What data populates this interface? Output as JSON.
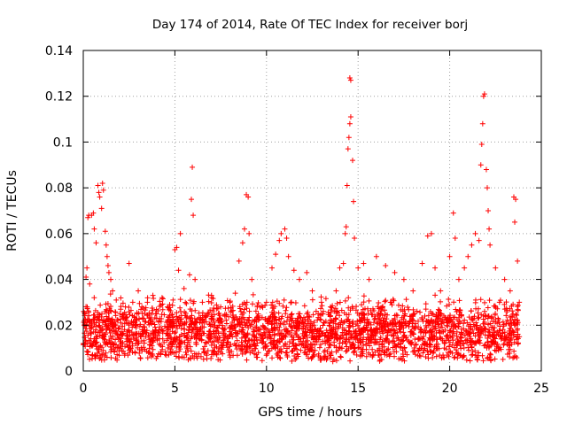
{
  "chart_data": {
    "type": "scatter",
    "title": "Day 174 of 2014, Rate Of TEC Index for receiver borj",
    "xlabel": "GPS time / hours",
    "ylabel": "ROTI / TECUs",
    "xlim": [
      0,
      25
    ],
    "ylim": [
      0,
      0.14
    ],
    "xticks": [
      0,
      5,
      10,
      15,
      20,
      25
    ],
    "xtick_labels": [
      "0",
      "5",
      "10",
      "15",
      "20",
      "25"
    ],
    "yticks": [
      0,
      0.02,
      0.04,
      0.06,
      0.08,
      0.1,
      0.12,
      0.14
    ],
    "ytick_labels": [
      "0",
      "0.02",
      "0.04",
      "0.06",
      "0.08",
      "0.1",
      "0.12",
      "0.14"
    ],
    "grid": true,
    "marker": "+",
    "series": [
      {
        "name": "ROTI",
        "color": "#ff0000",
        "points": [
          [
            0.0,
            0.012
          ],
          [
            0.1,
            0.025
          ],
          [
            0.15,
            0.041
          ],
          [
            0.2,
            0.045
          ],
          [
            0.25,
            0.067
          ],
          [
            0.3,
            0.068
          ],
          [
            0.35,
            0.038
          ],
          [
            0.45,
            0.068
          ],
          [
            0.55,
            0.069
          ],
          [
            0.6,
            0.062
          ],
          [
            0.7,
            0.056
          ],
          [
            0.8,
            0.081
          ],
          [
            0.85,
            0.078
          ],
          [
            0.9,
            0.076
          ],
          [
            1.0,
            0.071
          ],
          [
            1.05,
            0.082
          ],
          [
            1.1,
            0.079
          ],
          [
            1.2,
            0.061
          ],
          [
            1.25,
            0.055
          ],
          [
            1.3,
            0.05
          ],
          [
            1.35,
            0.046
          ],
          [
            1.4,
            0.043
          ],
          [
            1.5,
            0.04
          ],
          [
            1.6,
            0.035
          ],
          [
            1.8,
            0.031
          ],
          [
            2.0,
            0.025
          ],
          [
            2.3,
            0.028
          ],
          [
            2.5,
            0.047
          ],
          [
            2.7,
            0.03
          ],
          [
            3.0,
            0.035
          ],
          [
            3.2,
            0.028
          ],
          [
            3.5,
            0.03
          ],
          [
            3.8,
            0.033
          ],
          [
            4.0,
            0.025
          ],
          [
            4.3,
            0.032
          ],
          [
            4.6,
            0.028
          ],
          [
            4.9,
            0.031
          ],
          [
            5.0,
            0.053
          ],
          [
            5.1,
            0.054
          ],
          [
            5.3,
            0.06
          ],
          [
            5.2,
            0.044
          ],
          [
            5.5,
            0.036
          ],
          [
            5.8,
            0.042
          ],
          [
            5.9,
            0.075
          ],
          [
            5.95,
            0.089
          ],
          [
            6.0,
            0.068
          ],
          [
            6.1,
            0.04
          ],
          [
            6.5,
            0.03
          ],
          [
            7.0,
            0.033
          ],
          [
            7.5,
            0.028
          ],
          [
            8.0,
            0.03
          ],
          [
            8.3,
            0.034
          ],
          [
            8.5,
            0.048
          ],
          [
            8.7,
            0.056
          ],
          [
            8.8,
            0.062
          ],
          [
            8.9,
            0.077
          ],
          [
            9.0,
            0.076
          ],
          [
            9.05,
            0.06
          ],
          [
            9.2,
            0.04
          ],
          [
            9.5,
            0.028
          ],
          [
            10.0,
            0.03
          ],
          [
            10.3,
            0.045
          ],
          [
            10.5,
            0.051
          ],
          [
            10.7,
            0.057
          ],
          [
            10.8,
            0.06
          ],
          [
            11.0,
            0.062
          ],
          [
            11.1,
            0.058
          ],
          [
            11.2,
            0.05
          ],
          [
            11.5,
            0.044
          ],
          [
            11.8,
            0.04
          ],
          [
            12.2,
            0.043
          ],
          [
            12.5,
            0.035
          ],
          [
            13.0,
            0.03
          ],
          [
            13.5,
            0.028
          ],
          [
            13.8,
            0.035
          ],
          [
            14.0,
            0.045
          ],
          [
            14.2,
            0.047
          ],
          [
            14.3,
            0.06
          ],
          [
            14.35,
            0.063
          ],
          [
            14.4,
            0.081
          ],
          [
            14.45,
            0.097
          ],
          [
            14.5,
            0.102
          ],
          [
            14.55,
            0.108
          ],
          [
            14.6,
            0.111
          ],
          [
            14.55,
            0.128
          ],
          [
            14.6,
            0.127
          ],
          [
            14.7,
            0.092
          ],
          [
            14.75,
            0.074
          ],
          [
            14.8,
            0.058
          ],
          [
            15.0,
            0.045
          ],
          [
            15.3,
            0.047
          ],
          [
            15.6,
            0.04
          ],
          [
            16.0,
            0.05
          ],
          [
            16.5,
            0.046
          ],
          [
            17.0,
            0.043
          ],
          [
            17.5,
            0.04
          ],
          [
            18.0,
            0.035
          ],
          [
            18.5,
            0.047
          ],
          [
            18.8,
            0.059
          ],
          [
            19.0,
            0.06
          ],
          [
            19.2,
            0.045
          ],
          [
            19.5,
            0.035
          ],
          [
            20.0,
            0.05
          ],
          [
            20.2,
            0.069
          ],
          [
            20.3,
            0.058
          ],
          [
            20.5,
            0.04
          ],
          [
            20.8,
            0.045
          ],
          [
            21.0,
            0.05
          ],
          [
            21.2,
            0.055
          ],
          [
            21.4,
            0.06
          ],
          [
            21.6,
            0.057
          ],
          [
            21.7,
            0.09
          ],
          [
            21.75,
            0.099
          ],
          [
            21.8,
            0.108
          ],
          [
            21.85,
            0.12
          ],
          [
            21.9,
            0.121
          ],
          [
            22.0,
            0.088
          ],
          [
            22.05,
            0.08
          ],
          [
            22.1,
            0.07
          ],
          [
            22.15,
            0.062
          ],
          [
            22.2,
            0.055
          ],
          [
            22.5,
            0.045
          ],
          [
            23.0,
            0.04
          ],
          [
            23.3,
            0.035
          ],
          [
            23.5,
            0.076
          ],
          [
            23.6,
            0.075
          ],
          [
            23.55,
            0.065
          ],
          [
            23.7,
            0.048
          ],
          [
            23.8,
            0.03
          ],
          [
            23.6,
            0.02
          ],
          [
            23.8,
            0.015
          ]
        ]
      }
    ]
  }
}
